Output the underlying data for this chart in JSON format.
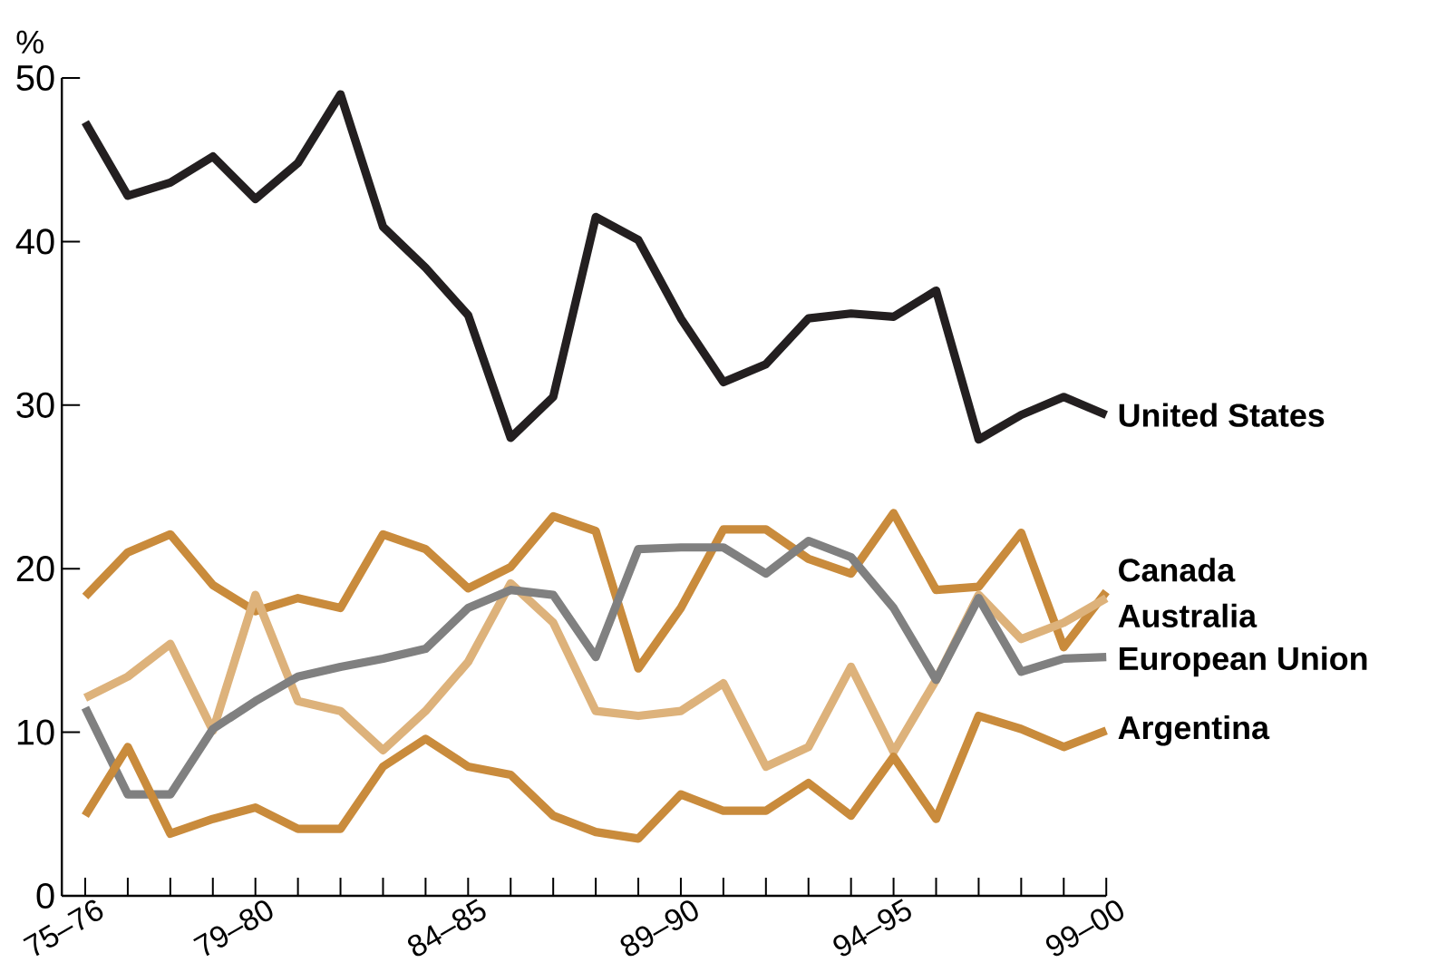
{
  "chart_data": {
    "type": "line",
    "ylabel": "%",
    "categories": [
      "75–76",
      null,
      null,
      null,
      "79–80",
      null,
      null,
      null,
      null,
      "84–85",
      null,
      null,
      null,
      null,
      "89–90",
      null,
      null,
      null,
      null,
      "94–95",
      null,
      null,
      null,
      null,
      "99–00"
    ],
    "ylim": [
      0,
      50
    ],
    "yticks": [
      0,
      10,
      20,
      30,
      40,
      50
    ],
    "grid": false,
    "legend": false,
    "marker": "none",
    "line_style": "solid",
    "series": [
      {
        "name": "United States",
        "color": "#231f20",
        "values": [
          47.3,
          42.8,
          43.6,
          45.2,
          42.6,
          44.8,
          49.0,
          40.9,
          38.4,
          35.5,
          28.0,
          30.5,
          41.5,
          40.1,
          35.3,
          31.4,
          32.5,
          35.3,
          35.6,
          35.4,
          37.0,
          27.9,
          29.4,
          30.5,
          29.4
        ]
      },
      {
        "name": "Canada",
        "color": "#c98b3c",
        "values": [
          18.3,
          21.0,
          22.1,
          19.0,
          17.4,
          18.2,
          17.6,
          22.1,
          21.2,
          18.8,
          20.1,
          23.2,
          22.3,
          13.9,
          17.6,
          22.4,
          22.4,
          20.6,
          19.7,
          23.4,
          18.7,
          18.9,
          22.2,
          15.2,
          18.6
        ]
      },
      {
        "name": "Australia",
        "color": "#ddb27b",
        "values": [
          12.1,
          13.4,
          15.4,
          10.1,
          18.4,
          11.9,
          11.3,
          8.9,
          11.3,
          14.3,
          19.1,
          16.7,
          11.3,
          11.0,
          11.3,
          13.0,
          7.9,
          9.1,
          14.0,
          8.8,
          13.2,
          18.4,
          15.7,
          16.7,
          18.2
        ]
      },
      {
        "name": "European Union",
        "color": "#808080",
        "values": [
          11.5,
          6.2,
          6.2,
          10.2,
          11.9,
          13.4,
          14.0,
          14.5,
          15.1,
          17.6,
          18.7,
          18.4,
          14.6,
          21.2,
          21.3,
          21.3,
          19.7,
          21.7,
          20.7,
          17.6,
          13.2,
          18.2,
          13.7,
          14.5,
          14.6
        ]
      },
      {
        "name": "Argentina",
        "color": "#c98b3c",
        "values": [
          4.9,
          9.1,
          3.8,
          4.7,
          5.4,
          4.1,
          4.1,
          7.9,
          9.6,
          7.9,
          7.4,
          4.9,
          3.9,
          3.5,
          6.2,
          5.2,
          5.2,
          6.9,
          4.9,
          8.5,
          4.7,
          11.0,
          10.2,
          9.1,
          10.1
        ]
      }
    ]
  }
}
